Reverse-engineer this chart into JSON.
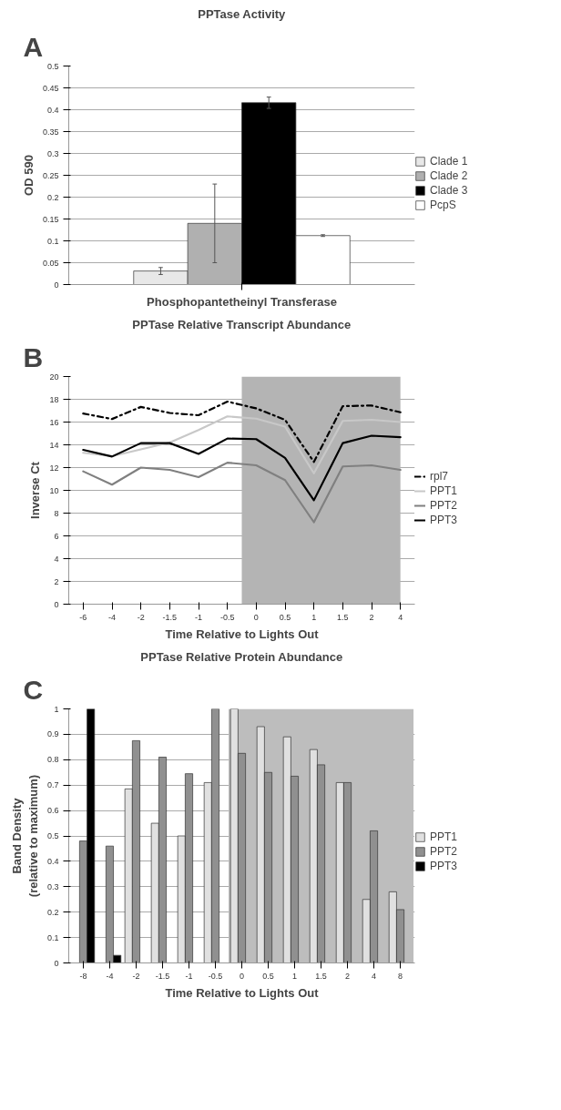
{
  "chart_data": [
    {
      "type": "bar",
      "title": "PPTase Activity",
      "ylabel": "OD 590",
      "xlabel": "Phosphopantetheinyl Transferase",
      "annotations": [
        "A"
      ],
      "categories": [
        null
      ],
      "series": [
        {
          "name": "Clade 1",
          "color": "#e8e8e8",
          "values": [
            0.031
          ],
          "errors": [
            0.008
          ]
        },
        {
          "name": "Clade 2",
          "color": "#b0b0b0",
          "values": [
            0.14
          ],
          "errors": [
            0.09
          ]
        },
        {
          "name": "Clade 3",
          "color": "#000000",
          "values": [
            0.416
          ],
          "errors": [
            0.013
          ]
        },
        {
          "name": "PcpS",
          "color": "#ffffff",
          "values": [
            0.112
          ],
          "errors": [
            0.002
          ]
        }
      ],
      "ylim": [
        0,
        0.5
      ],
      "yticks": [
        0,
        0.05,
        0.1,
        0.15,
        0.2,
        0.25,
        0.3,
        0.35,
        0.4,
        0.45,
        0.5
      ],
      "grid": "y",
      "legend": "right"
    },
    {
      "type": "line",
      "title": "PPTase Relative Transcript Abundance",
      "ylabel": "Inverse Ct",
      "xlabel": "Time Relative to Lights Out",
      "annotations": [
        "B"
      ],
      "categories": [
        "-6",
        "-4",
        "-2",
        "-1.5",
        "-1",
        "-0.5",
        "0",
        "0.5",
        "1",
        "1.5",
        "2",
        "4"
      ],
      "series": [
        {
          "name": "rpl7",
          "color": "#000000",
          "line_style": "dashed",
          "values": [
            16.75,
            16.27,
            17.33,
            16.8,
            16.6,
            17.8,
            17.2,
            16.2,
            12.5,
            17.4,
            17.45,
            16.86
          ]
        },
        {
          "name": "PPT1",
          "color": "#c8c8c8",
          "values": [
            13.3,
            13.0,
            13.6,
            14.2,
            15.3,
            16.5,
            16.3,
            15.6,
            11.5,
            16.1,
            16.2,
            16.0
          ]
        },
        {
          "name": "PPT2",
          "color": "#808080",
          "values": [
            11.67,
            10.5,
            12.0,
            11.8,
            11.16,
            12.43,
            12.2,
            10.9,
            7.2,
            12.1,
            12.2,
            11.8
          ]
        },
        {
          "name": "PPT3",
          "color": "#000000",
          "values": [
            13.56,
            12.97,
            14.15,
            14.15,
            13.2,
            14.55,
            14.5,
            12.85,
            9.13,
            14.15,
            14.8,
            14.67
          ]
        }
      ],
      "bands": [
        {
          "axis": "x",
          "from": "0",
          "to": "4",
          "color": "#b4b4b4"
        }
      ],
      "ylim": [
        0,
        20
      ],
      "yticks": [
        0,
        2,
        4,
        6,
        8,
        10,
        12,
        14,
        16,
        18,
        20
      ],
      "grid": "y",
      "legend": "right"
    },
    {
      "type": "bar",
      "title": "PPTase Relative Protein Abundance",
      "ylabel": "Band Density\n(relative to maximum)",
      "xlabel": "Time Relative to Lights Out",
      "annotations": [
        "C"
      ],
      "categories": [
        "-8",
        "-4",
        "-2",
        "-1.5",
        "-1",
        "-0.5",
        "0",
        "0.5",
        "1",
        "1.5",
        "2",
        "4",
        "8"
      ],
      "series": [
        {
          "name": "PPT1",
          "color": "#e0e0e0",
          "values": [
            null,
            null,
            0.685,
            0.55,
            0.5,
            0.71,
            1.0,
            0.93,
            0.89,
            0.84,
            0.71,
            0.25,
            0.28
          ]
        },
        {
          "name": "PPT2",
          "color": "#909090",
          "values": [
            0.48,
            0.46,
            0.875,
            0.81,
            0.745,
            1.0,
            0.825,
            0.75,
            0.735,
            0.78,
            0.71,
            0.52,
            0.21
          ]
        },
        {
          "name": "PPT3",
          "color": "#000000",
          "values": [
            1.0,
            0.03,
            null,
            null,
            null,
            null,
            null,
            null,
            null,
            null,
            null,
            null,
            null
          ]
        }
      ],
      "bands": [
        {
          "axis": "x",
          "from": "0",
          "to": "8",
          "color": "#bdbdbd"
        }
      ],
      "ylim": [
        0,
        1
      ],
      "yticks": [
        0,
        0.1,
        0.2,
        0.3,
        0.4,
        0.5,
        0.6,
        0.7,
        0.8,
        0.9,
        1
      ],
      "grid": "y",
      "legend": "right"
    }
  ]
}
